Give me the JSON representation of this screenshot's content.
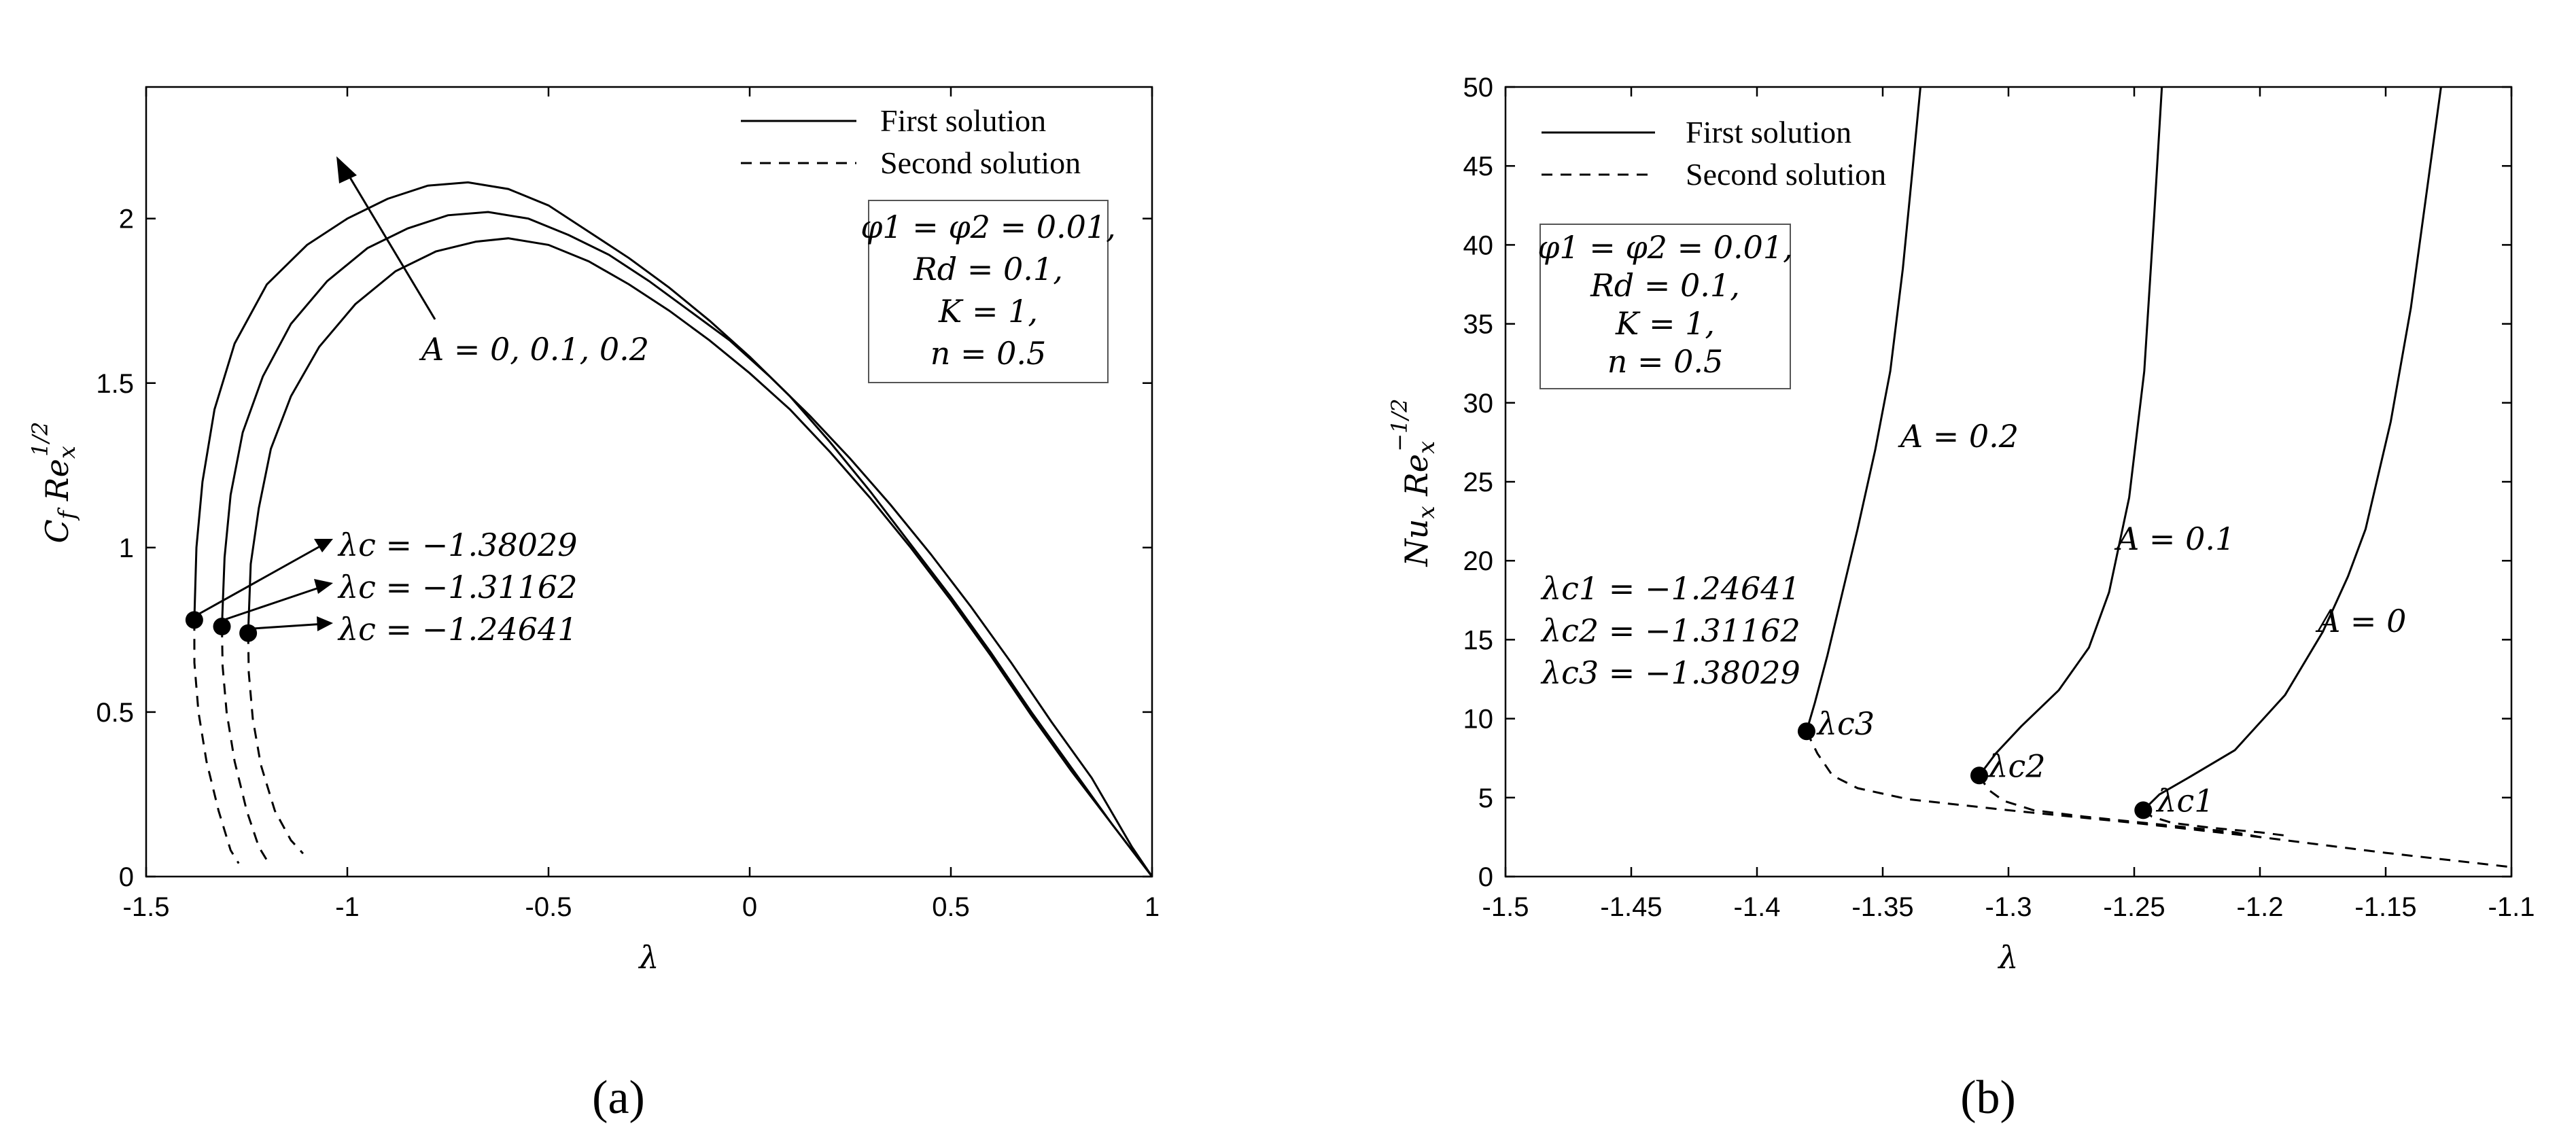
{
  "chart_data": [
    {
      "type": "line",
      "caption": "(a)",
      "xlabel": "λ",
      "ylabel": "C_f Re_x^{1/2}",
      "xlim": [
        -1.5,
        1
      ],
      "ylim": [
        0,
        2.4
      ],
      "xticks": [
        -1.5,
        -1,
        -0.5,
        0,
        0.5,
        1
      ],
      "xtick_labels": [
        "-1.5",
        "-1",
        "-0.5",
        "0",
        "0.5",
        "1"
      ],
      "yticks": [
        0,
        0.5,
        1,
        1.5,
        2
      ],
      "ytick_labels": [
        "0",
        "0.5",
        "1",
        "1.5",
        "2"
      ],
      "legend": {
        "placement": "top-right",
        "entries": [
          {
            "label": "First solution",
            "style": "solid"
          },
          {
            "label": "Second solution",
            "style": "dashed"
          }
        ]
      },
      "parameter_box": [
        "φ1 = φ2 = 0.01,",
        "Rd = 0.1,",
        "K = 1,",
        "n = 0.5"
      ],
      "annotations": {
        "arrow_label": "A = 0, 0.1, 0.2",
        "critical_labels": [
          "λc = −1.38029",
          "λc = −1.31162",
          "λc = −1.24641"
        ]
      },
      "series": [
        {
          "A": 0.2,
          "style": "solid",
          "x": [
            -1.38029,
            -1.375,
            -1.36,
            -1.33,
            -1.28,
            -1.2,
            -1.1,
            -1.0,
            -0.9,
            -0.8,
            -0.7,
            -0.6,
            -0.5,
            -0.4,
            -0.3,
            -0.2,
            -0.1,
            0.0,
            0.1,
            0.2,
            0.3,
            0.4,
            0.5,
            0.6,
            0.7,
            0.8,
            0.9,
            1.0
          ],
          "y": [
            0.78,
            1.0,
            1.2,
            1.42,
            1.62,
            1.8,
            1.92,
            2.0,
            2.06,
            2.1,
            2.11,
            2.09,
            2.04,
            1.96,
            1.88,
            1.79,
            1.69,
            1.58,
            1.46,
            1.32,
            1.17,
            1.01,
            0.85,
            0.68,
            0.5,
            0.33,
            0.16,
            0.0
          ]
        },
        {
          "A": 0.1,
          "style": "solid",
          "x": [
            -1.31162,
            -1.305,
            -1.29,
            -1.26,
            -1.21,
            -1.14,
            -1.05,
            -0.95,
            -0.85,
            -0.75,
            -0.65,
            -0.55,
            -0.45,
            -0.35,
            -0.25,
            -0.15,
            -0.05,
            0.05,
            0.15,
            0.25,
            0.35,
            0.45,
            0.55,
            0.65,
            0.75,
            0.85,
            0.95,
            1.0
          ],
          "y": [
            0.76,
            0.97,
            1.16,
            1.35,
            1.52,
            1.68,
            1.81,
            1.91,
            1.97,
            2.01,
            2.02,
            2.0,
            1.95,
            1.89,
            1.81,
            1.72,
            1.63,
            1.52,
            1.4,
            1.27,
            1.13,
            0.98,
            0.82,
            0.65,
            0.47,
            0.3,
            0.09,
            0.0
          ]
        },
        {
          "A": 0.0,
          "style": "solid",
          "x": [
            -1.24641,
            -1.24,
            -1.22,
            -1.19,
            -1.14,
            -1.07,
            -0.98,
            -0.88,
            -0.78,
            -0.68,
            -0.6,
            -0.5,
            -0.4,
            -0.3,
            -0.2,
            -0.1,
            0.0,
            0.1,
            0.2,
            0.3,
            0.4,
            0.5,
            0.6,
            0.7,
            0.8,
            0.9,
            1.0
          ],
          "y": [
            0.74,
            0.95,
            1.12,
            1.3,
            1.46,
            1.61,
            1.74,
            1.84,
            1.9,
            1.93,
            1.94,
            1.92,
            1.87,
            1.8,
            1.72,
            1.63,
            1.53,
            1.42,
            1.29,
            1.15,
            1.0,
            0.84,
            0.67,
            0.49,
            0.32,
            0.16,
            0.0
          ]
        },
        {
          "A": 0.2,
          "style": "dashed",
          "x": [
            -1.38029,
            -1.38,
            -1.37,
            -1.35,
            -1.32,
            -1.29,
            -1.27
          ],
          "y": [
            0.78,
            0.65,
            0.5,
            0.35,
            0.2,
            0.08,
            0.04
          ]
        },
        {
          "A": 0.1,
          "style": "dashed",
          "x": [
            -1.31162,
            -1.31,
            -1.3,
            -1.28,
            -1.25,
            -1.22,
            -1.2
          ],
          "y": [
            0.76,
            0.64,
            0.5,
            0.35,
            0.2,
            0.09,
            0.05
          ]
        },
        {
          "A": 0.0,
          "style": "dashed",
          "x": [
            -1.24641,
            -1.245,
            -1.235,
            -1.215,
            -1.18,
            -1.14,
            -1.11
          ],
          "y": [
            0.74,
            0.62,
            0.48,
            0.34,
            0.2,
            0.11,
            0.07
          ]
        }
      ],
      "critical_points": [
        {
          "x": -1.38029,
          "y": 0.78
        },
        {
          "x": -1.31162,
          "y": 0.76
        },
        {
          "x": -1.24641,
          "y": 0.74
        }
      ]
    },
    {
      "type": "line",
      "caption": "(b)",
      "xlabel": "λ",
      "ylabel": "Nu_x Re_x^{-1/2}",
      "xlim": [
        -1.5,
        -1.1
      ],
      "ylim": [
        0,
        50
      ],
      "xticks": [
        -1.5,
        -1.45,
        -1.4,
        -1.35,
        -1.3,
        -1.25,
        -1.2,
        -1.15,
        -1.1
      ],
      "xtick_labels": [
        "-1.5",
        "-1.45",
        "-1.4",
        "-1.35",
        "-1.3",
        "-1.25",
        "-1.2",
        "-1.15",
        "-1.1"
      ],
      "yticks": [
        0,
        5,
        10,
        15,
        20,
        25,
        30,
        35,
        40,
        45,
        50
      ],
      "ytick_labels": [
        "0",
        "5",
        "10",
        "15",
        "20",
        "25",
        "30",
        "35",
        "40",
        "45",
        "50"
      ],
      "legend": {
        "placement": "top-left",
        "entries": [
          {
            "label": "First solution",
            "style": "solid"
          },
          {
            "label": "Second solution",
            "style": "dashed"
          }
        ]
      },
      "parameter_box": [
        "φ1 = φ2 = 0.01,",
        "Rd = 0.1,",
        "K = 1,",
        "n = 0.5"
      ],
      "annotations": {
        "critical_list": [
          "λc1 = −1.24641",
          "λc2 = −1.31162",
          "λc3 = −1.38029"
        ],
        "curve_labels": [
          {
            "text": "A = 0.2",
            "x": -1.343,
            "y": 27.2
          },
          {
            "text": "A = 0.1",
            "x": -1.257,
            "y": 20.7
          },
          {
            "text": "A = 0",
            "x": -1.177,
            "y": 15.5
          }
        ],
        "point_labels": [
          {
            "text": "λc3",
            "x": -1.376,
            "y": 9.0
          },
          {
            "text": "λc2",
            "x": -1.308,
            "y": 6.3
          },
          {
            "text": "λc1",
            "x": -1.241,
            "y": 4.1
          }
        ]
      },
      "series": [
        {
          "A": 0.2,
          "style": "solid",
          "x": [
            -1.38029,
            -1.377,
            -1.372,
            -1.366,
            -1.36,
            -1.353,
            -1.347,
            -1.342,
            -1.338,
            -1.335
          ],
          "y": [
            9.2,
            11.0,
            14.0,
            18.0,
            22.0,
            27.0,
            32.0,
            38.5,
            45.0,
            50.0
          ]
        },
        {
          "A": 0.1,
          "style": "solid",
          "x": [
            -1.31162,
            -1.305,
            -1.295,
            -1.28,
            -1.268,
            -1.26,
            -1.252,
            -1.246,
            -1.242,
            -1.239
          ],
          "y": [
            6.4,
            7.8,
            9.5,
            11.8,
            14.5,
            18.0,
            24.0,
            32.0,
            42.0,
            50.0
          ]
        },
        {
          "A": 0.0,
          "style": "solid",
          "x": [
            -1.24641,
            -1.24,
            -1.228,
            -1.21,
            -1.19,
            -1.175,
            -1.165,
            -1.158,
            -1.148,
            -1.14,
            -1.134,
            -1.128
          ],
          "y": [
            4.2,
            5.2,
            6.3,
            8.0,
            11.5,
            15.5,
            19.0,
            22.0,
            28.8,
            36.0,
            43.0,
            50.0
          ]
        },
        {
          "A": 0.2,
          "style": "dashed",
          "x": [
            -1.38029,
            -1.376,
            -1.37,
            -1.36,
            -1.34,
            -1.3,
            -1.25,
            -1.2,
            -1.15,
            -1.1
          ],
          "y": [
            9.2,
            7.8,
            6.4,
            5.6,
            4.9,
            4.2,
            3.4,
            2.5,
            1.5,
            0.6
          ]
        },
        {
          "A": 0.1,
          "style": "dashed",
          "x": [
            -1.31162,
            -1.308,
            -1.302,
            -1.29,
            -1.27,
            -1.24,
            -1.21,
            -1.2
          ],
          "y": [
            6.4,
            5.5,
            4.8,
            4.2,
            3.8,
            3.3,
            2.8,
            2.5
          ]
        },
        {
          "A": 0.0,
          "style": "dashed",
          "x": [
            -1.24641,
            -1.243,
            -1.235,
            -1.22,
            -1.2,
            -1.19
          ],
          "y": [
            4.2,
            3.8,
            3.4,
            3.1,
            2.8,
            2.6
          ]
        }
      ],
      "critical_points": [
        {
          "x": -1.38029,
          "y": 9.2
        },
        {
          "x": -1.31162,
          "y": 6.4
        },
        {
          "x": -1.24641,
          "y": 4.2
        }
      ]
    }
  ]
}
